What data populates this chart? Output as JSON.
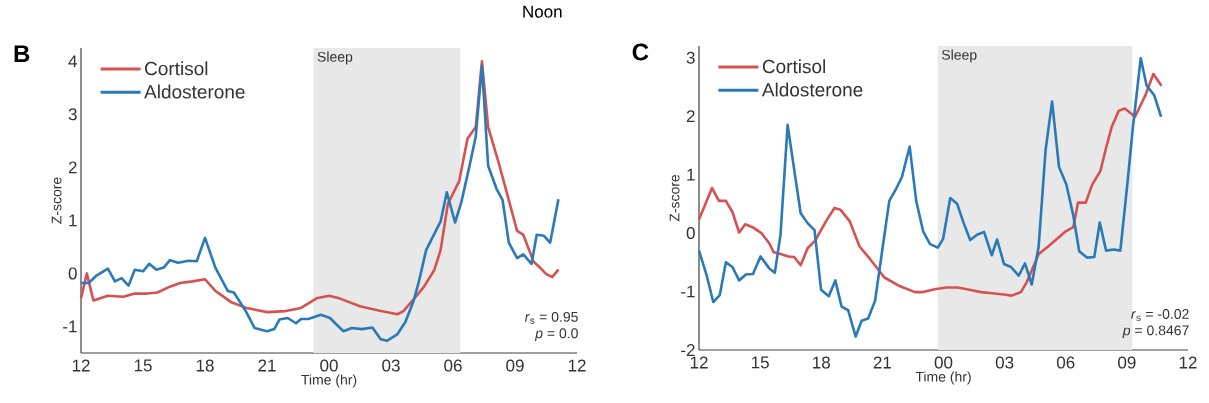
{
  "chart_data": [
    {
      "type": "line",
      "title": "B",
      "xlabel": "Time (hr)",
      "ylabel": "Z-score",
      "xlim": [
        12,
        36
      ],
      "ylim": [
        -1.5,
        4.25
      ],
      "xticks": [
        {
          "value": 12,
          "label": "12"
        },
        {
          "value": 15,
          "label": "15"
        },
        {
          "value": 18,
          "label": "18"
        },
        {
          "value": 21,
          "label": "21"
        },
        {
          "value": 24,
          "label": "00"
        },
        {
          "value": 27,
          "label": "03"
        },
        {
          "value": 30,
          "label": "06"
        },
        {
          "value": 33,
          "label": "09"
        },
        {
          "value": 36,
          "label": "12"
        }
      ],
      "yticks": [
        -1,
        0,
        1,
        2,
        3,
        4
      ],
      "grid": false,
      "legend": "top left",
      "marker": "none",
      "line_style": "solid",
      "bands": [
        {
          "axis": "x",
          "from": 23.25,
          "to": 30.35,
          "label": "Sleep",
          "color": "#e8e8e8"
        }
      ],
      "annotations": [
        "Noon",
        "*r*$_{s}$ = 0.95",
        "*p* = 0.0"
      ],
      "series": [
        {
          "name": "Cortisol",
          "color": "#d65252",
          "x": [
            12,
            12.28,
            12.6,
            13.3,
            14.05,
            14.6,
            15.2,
            15.7,
            16.3,
            16.8,
            17.4,
            18.0,
            18.5,
            19.3,
            20.0,
            21.0,
            21.9,
            22.65,
            23.4,
            24.0,
            24.5,
            25.5,
            26.4,
            27.3,
            27.6,
            28.2,
            28.6,
            29.1,
            29.4,
            29.75,
            30.3,
            30.7,
            31.1,
            31.4,
            31.7,
            32.2,
            32.75,
            33.1,
            33.4,
            33.9,
            34.1,
            34.5,
            34.8,
            35.1
          ],
          "values": [
            -0.47,
            0.0,
            -0.51,
            -0.42,
            -0.44,
            -0.38,
            -0.38,
            -0.36,
            -0.25,
            -0.18,
            -0.15,
            -0.11,
            -0.33,
            -0.55,
            -0.65,
            -0.73,
            -0.71,
            -0.65,
            -0.47,
            -0.42,
            -0.47,
            -0.62,
            -0.7,
            -0.77,
            -0.71,
            -0.44,
            -0.25,
            0.07,
            0.44,
            1.31,
            1.74,
            2.54,
            2.76,
            4.0,
            2.76,
            2.1,
            1.31,
            0.8,
            0.73,
            0.22,
            0.15,
            -0.01,
            -0.07,
            0.07
          ]
        },
        {
          "name": "Aldosterone",
          "color": "#2a7ab8",
          "x": [
            12,
            12.37,
            12.75,
            13.3,
            13.64,
            13.96,
            14.3,
            14.6,
            15.0,
            15.3,
            15.65,
            16.0,
            16.3,
            16.7,
            17.2,
            17.6,
            18.0,
            18.5,
            19.1,
            19.4,
            20.0,
            20.4,
            21.0,
            21.35,
            21.6,
            22.0,
            22.4,
            22.65,
            23.0,
            23.6,
            24.05,
            24.3,
            24.7,
            25.1,
            25.6,
            26.1,
            26.5,
            26.8,
            27.3,
            27.7,
            28.1,
            28.35,
            28.7,
            29.4,
            29.7,
            30.1,
            30.4,
            30.8,
            31.1,
            31.4,
            31.7,
            32.1,
            32.4,
            32.7,
            33.1,
            33.4,
            33.8,
            34.05,
            34.4,
            34.7,
            35.1
          ],
          "values": [
            -0.18,
            -0.18,
            -0.04,
            0.09,
            -0.15,
            -0.09,
            -0.23,
            0.07,
            0.04,
            0.18,
            0.07,
            0.11,
            0.25,
            0.2,
            0.24,
            0.23,
            0.67,
            0.11,
            -0.33,
            -0.36,
            -0.73,
            -1.03,
            -1.09,
            -1.05,
            -0.87,
            -0.84,
            -0.94,
            -0.86,
            -0.86,
            -0.78,
            -0.84,
            -0.94,
            -1.09,
            -1.03,
            -1.05,
            -1.02,
            -1.24,
            -1.27,
            -1.15,
            -0.91,
            -0.51,
            -0.15,
            0.44,
            0.98,
            1.53,
            0.96,
            1.34,
            2.03,
            2.58,
            3.92,
            2.03,
            1.6,
            1.38,
            0.58,
            0.29,
            0.36,
            0.18,
            0.73,
            0.71,
            0.58,
            1.4
          ]
        }
      ]
    },
    {
      "type": "line",
      "title": "C",
      "xlabel": "Time (hr)",
      "ylabel": "Z-score",
      "xlim": [
        12,
        36
      ],
      "ylim": [
        -2,
        3.2
      ],
      "xticks": [
        {
          "value": 12,
          "label": "12"
        },
        {
          "value": 15,
          "label": "15"
        },
        {
          "value": 18,
          "label": "18"
        },
        {
          "value": 21,
          "label": "21"
        },
        {
          "value": 24,
          "label": "00"
        },
        {
          "value": 27,
          "label": "03"
        },
        {
          "value": 30,
          "label": "06"
        },
        {
          "value": 33,
          "label": "09"
        },
        {
          "value": 36,
          "label": "12"
        }
      ],
      "yticks": [
        -2,
        -1,
        0,
        1,
        2,
        3
      ],
      "grid": false,
      "legend": "top left",
      "marker": "none",
      "line_style": "solid",
      "bands": [
        {
          "axis": "x",
          "from": 23.72,
          "to": 33.27,
          "label": "Sleep",
          "color": "#e8e8e8"
        }
      ],
      "annotations": [
        "*r*$_{s}$ = -0.02",
        "*p* = 0.8467"
      ],
      "series": [
        {
          "name": "Cortisol",
          "color": "#d65252",
          "x": [
            12,
            12.64,
            12.98,
            13.32,
            13.64,
            13.97,
            14.27,
            14.68,
            15.06,
            15.44,
            15.67,
            16.0,
            16.39,
            16.67,
            16.99,
            17.33,
            17.7,
            18.28,
            18.65,
            18.94,
            19.4,
            19.88,
            20.36,
            21.1,
            21.87,
            22.6,
            23.0,
            23.57,
            24.14,
            24.7,
            25.27,
            25.84,
            26.4,
            26.97,
            27.35,
            27.8,
            28.1,
            28.67,
            29.24,
            30.0,
            30.37,
            30.6,
            30.98,
            31.3,
            31.7,
            31.98,
            32.26,
            32.6,
            32.9,
            33.4,
            33.9,
            34.3,
            34.7
          ],
          "values": [
            0.23,
            0.77,
            0.55,
            0.55,
            0.36,
            0.01,
            0.15,
            0.09,
            0.0,
            -0.17,
            -0.33,
            -0.36,
            -0.4,
            -0.41,
            -0.55,
            -0.26,
            -0.13,
            0.23,
            0.43,
            0.4,
            0.2,
            -0.23,
            -0.43,
            -0.76,
            -0.91,
            -1.01,
            -1.01,
            -0.96,
            -0.93,
            -0.93,
            -0.97,
            -1.01,
            -1.03,
            -1.05,
            -1.07,
            -1.01,
            -0.83,
            -0.36,
            -0.2,
            0.03,
            0.1,
            0.52,
            0.52,
            0.83,
            1.06,
            1.46,
            1.82,
            2.09,
            2.13,
            1.99,
            2.35,
            2.72,
            2.52
          ]
        },
        {
          "name": "Aldosterone",
          "color": "#2a7ab8",
          "x": [
            12,
            12.38,
            12.7,
            13.02,
            13.32,
            13.64,
            13.97,
            14.3,
            14.65,
            15.02,
            15.44,
            15.72,
            16.0,
            16.35,
            16.67,
            16.99,
            17.33,
            17.67,
            17.99,
            18.37,
            18.69,
            19.0,
            19.32,
            19.69,
            19.98,
            20.3,
            20.64,
            21.02,
            21.34,
            21.68,
            21.96,
            22.34,
            22.66,
            23.0,
            23.34,
            23.72,
            23.98,
            24.33,
            24.67,
            24.99,
            25.31,
            25.65,
            25.99,
            26.37,
            26.63,
            26.97,
            27.31,
            27.69,
            28.0,
            28.33,
            28.67,
            29.01,
            29.33,
            29.67,
            30.03,
            30.37,
            30.66,
            31.04,
            31.4,
            31.67,
            31.98,
            32.36,
            32.68,
            33.02,
            33.3,
            33.68,
            33.97,
            34.34,
            34.68
          ],
          "values": [
            -0.3,
            -0.73,
            -1.18,
            -1.06,
            -0.5,
            -0.58,
            -0.81,
            -0.71,
            -0.7,
            -0.4,
            -0.6,
            -0.68,
            -0.03,
            1.85,
            1.09,
            0.34,
            0.17,
            0.05,
            -0.97,
            -1.08,
            -0.81,
            -1.26,
            -1.32,
            -1.77,
            -1.5,
            -1.46,
            -1.16,
            -0.23,
            0.55,
            0.76,
            0.96,
            1.48,
            0.55,
            0.03,
            -0.19,
            -0.25,
            -0.1,
            0.6,
            0.5,
            0.17,
            -0.12,
            -0.03,
            0.02,
            -0.38,
            -0.11,
            -0.53,
            -0.58,
            -0.73,
            -0.52,
            -0.88,
            -0.23,
            1.42,
            2.25,
            1.13,
            0.83,
            0.3,
            -0.31,
            -0.42,
            -0.41,
            0.18,
            -0.3,
            -0.28,
            -0.3,
            0.83,
            1.82,
            2.99,
            2.52,
            2.36,
            1.99
          ]
        }
      ]
    }
  ]
}
